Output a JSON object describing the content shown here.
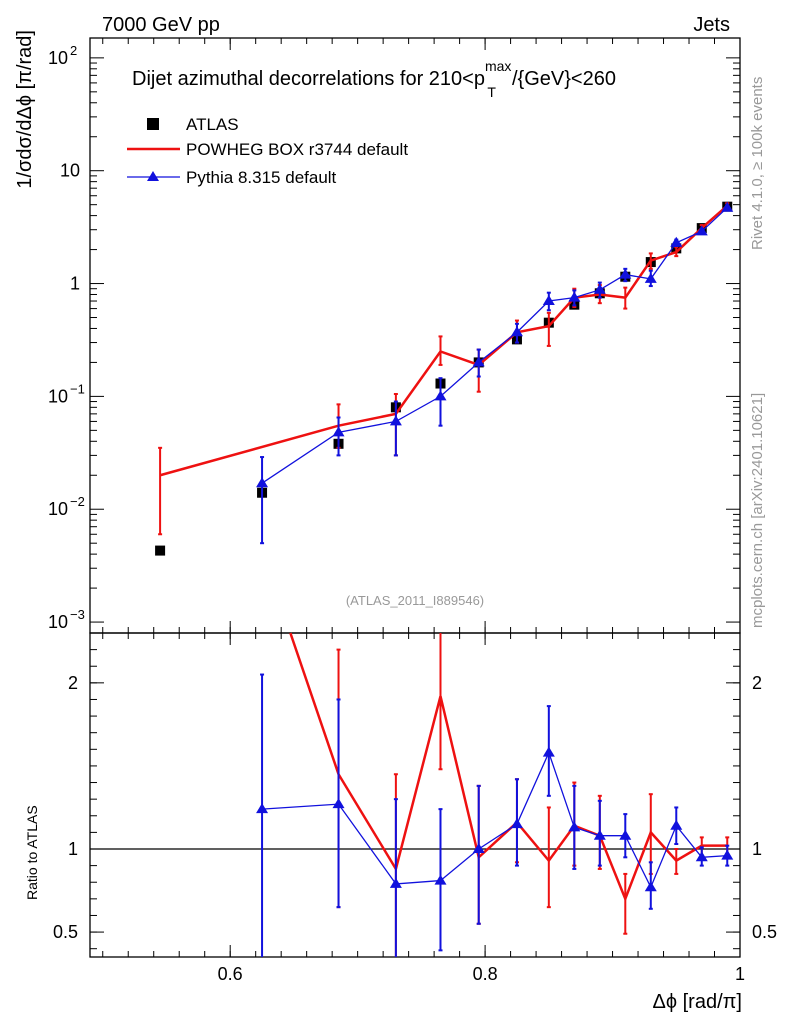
{
  "header": {
    "left": "7000 GeV pp",
    "right": "Jets"
  },
  "side_labels": {
    "rivet": "Rivet 4.1.0, ≥ 100k events",
    "mcplots": "mcplots.cern.ch [arXiv:2401.10621]"
  },
  "chart_data": {
    "type": "scatter",
    "title": "Dijet azimuthal decorrelations for 210<p_T^max/{GeV}<260",
    "title_parts": {
      "pre": "Dijet azimuthal decorrelations for 210<p",
      "sup": "max",
      "sub": "T",
      "post": "/{GeV}<260"
    },
    "analysis_id": "(ATLAS_2011_I889546)",
    "xlabel": "Δϕ [rad/π]",
    "ylabel": "1/σdσ/dΔϕ [π/rad]",
    "ratio_ylabel": "Ratio to ATLAS",
    "xlim": [
      0.49,
      1.0
    ],
    "ylim_log": [
      0.0008,
      150
    ],
    "ratio_ylim": [
      0.35,
      2.3
    ],
    "x_ticks": [
      {
        "v": 0.6,
        "label": "0.6"
      },
      {
        "v": 0.8,
        "label": "0.8"
      },
      {
        "v": 1.0,
        "label": "1"
      }
    ],
    "y_ticks": [
      {
        "v": 0.001,
        "base": "10",
        "exp": "−3"
      },
      {
        "v": 0.01,
        "base": "10",
        "exp": "−2"
      },
      {
        "v": 0.1,
        "base": "10",
        "exp": "−1"
      },
      {
        "v": 1,
        "base": "1",
        "exp": ""
      },
      {
        "v": 10,
        "base": "10",
        "exp": ""
      },
      {
        "v": 100,
        "base": "10",
        "exp": "2"
      }
    ],
    "ratio_ticks": [
      {
        "v": 0.5,
        "label": "0.5"
      },
      {
        "v": 1,
        "label": "1"
      },
      {
        "v": 2,
        "label": "2"
      }
    ],
    "legend": [
      {
        "label": "ATLAS",
        "color": "#000000",
        "marker": "square"
      },
      {
        "label": "POWHEG BOX r3744 default",
        "color": "#ee1111",
        "marker": "line"
      },
      {
        "label": "Pythia 8.315 default",
        "color": "#1111dd",
        "marker": "triangle"
      }
    ],
    "series": [
      {
        "name": "ATLAS",
        "color": "#000000",
        "x": [
          0.545,
          0.625,
          0.685,
          0.73,
          0.765,
          0.795,
          0.825,
          0.85,
          0.87,
          0.89,
          0.91,
          0.93,
          0.95,
          0.97,
          0.99
        ],
        "y": [
          0.0043,
          0.014,
          0.038,
          0.08,
          0.13,
          0.2,
          0.32,
          0.45,
          0.65,
          0.82,
          1.15,
          1.55,
          2.05,
          3.1,
          4.8
        ]
      },
      {
        "name": "POWHEG BOX r3744 default",
        "color": "#ee1111",
        "x": [
          0.545,
          0.685,
          0.73,
          0.765,
          0.795,
          0.825,
          0.85,
          0.87,
          0.89,
          0.91,
          0.93,
          0.95,
          0.97,
          0.99
        ],
        "y": [
          0.02,
          0.055,
          0.07,
          0.25,
          0.19,
          0.37,
          0.42,
          0.75,
          0.8,
          0.75,
          1.6,
          1.9,
          3.1,
          4.9
        ],
        "ylo": [
          0.006,
          0.035,
          0.03,
          0.19,
          0.11,
          0.3,
          0.28,
          0.62,
          0.67,
          0.6,
          1.35,
          1.75,
          2.95,
          4.7
        ],
        "yhi": [
          0.035,
          0.085,
          0.105,
          0.34,
          0.26,
          0.47,
          0.55,
          0.9,
          0.97,
          0.92,
          1.85,
          2.1,
          3.3,
          5.15
        ],
        "ratio": [
          4.6,
          1.45,
          0.88,
          1.92,
          0.95,
          1.16,
          0.93,
          1.14,
          1.08,
          0.7,
          1.1,
          0.93,
          1.02,
          1.02
        ],
        "ratio_lo": [
          null,
          0.65,
          0.3,
          1.48,
          0.55,
          0.92,
          0.65,
          0.9,
          0.88,
          0.49,
          0.85,
          0.85,
          0.96,
          0.97
        ],
        "ratio_hi": [
          null,
          2.2,
          1.45,
          2.4,
          1.38,
          1.42,
          1.25,
          1.4,
          1.32,
          0.85,
          1.33,
          1.0,
          1.07,
          1.07
        ]
      },
      {
        "name": "Pythia 8.315 default",
        "color": "#1111dd",
        "x": [
          0.625,
          0.685,
          0.73,
          0.765,
          0.795,
          0.825,
          0.85,
          0.87,
          0.89,
          0.91,
          0.93,
          0.95,
          0.97,
          0.99
        ],
        "y": [
          0.017,
          0.048,
          0.06,
          0.1,
          0.2,
          0.37,
          0.7,
          0.75,
          0.88,
          1.2,
          1.1,
          2.3,
          2.9,
          4.7
        ],
        "ylo": [
          0.005,
          0.03,
          0.03,
          0.055,
          0.15,
          0.3,
          0.58,
          0.64,
          0.75,
          1.05,
          0.95,
          2.15,
          2.8,
          4.5
        ],
        "yhi": [
          0.029,
          0.065,
          0.09,
          0.145,
          0.26,
          0.44,
          0.83,
          0.87,
          1.02,
          1.35,
          1.3,
          2.45,
          3.05,
          4.9
        ],
        "ratio": [
          1.24,
          1.27,
          0.79,
          0.81,
          1.0,
          1.15,
          1.58,
          1.13,
          1.08,
          1.08,
          0.77,
          1.14,
          0.95,
          0.96
        ],
        "ratio_lo": [
          0.3,
          0.65,
          0.3,
          0.39,
          0.55,
          0.9,
          1.32,
          0.88,
          0.9,
          0.95,
          0.64,
          1.03,
          0.9,
          0.9
        ],
        "ratio_hi": [
          2.05,
          1.9,
          1.3,
          1.24,
          1.38,
          1.42,
          1.86,
          1.38,
          1.29,
          1.21,
          0.92,
          1.25,
          1.01,
          1.02
        ]
      }
    ]
  }
}
